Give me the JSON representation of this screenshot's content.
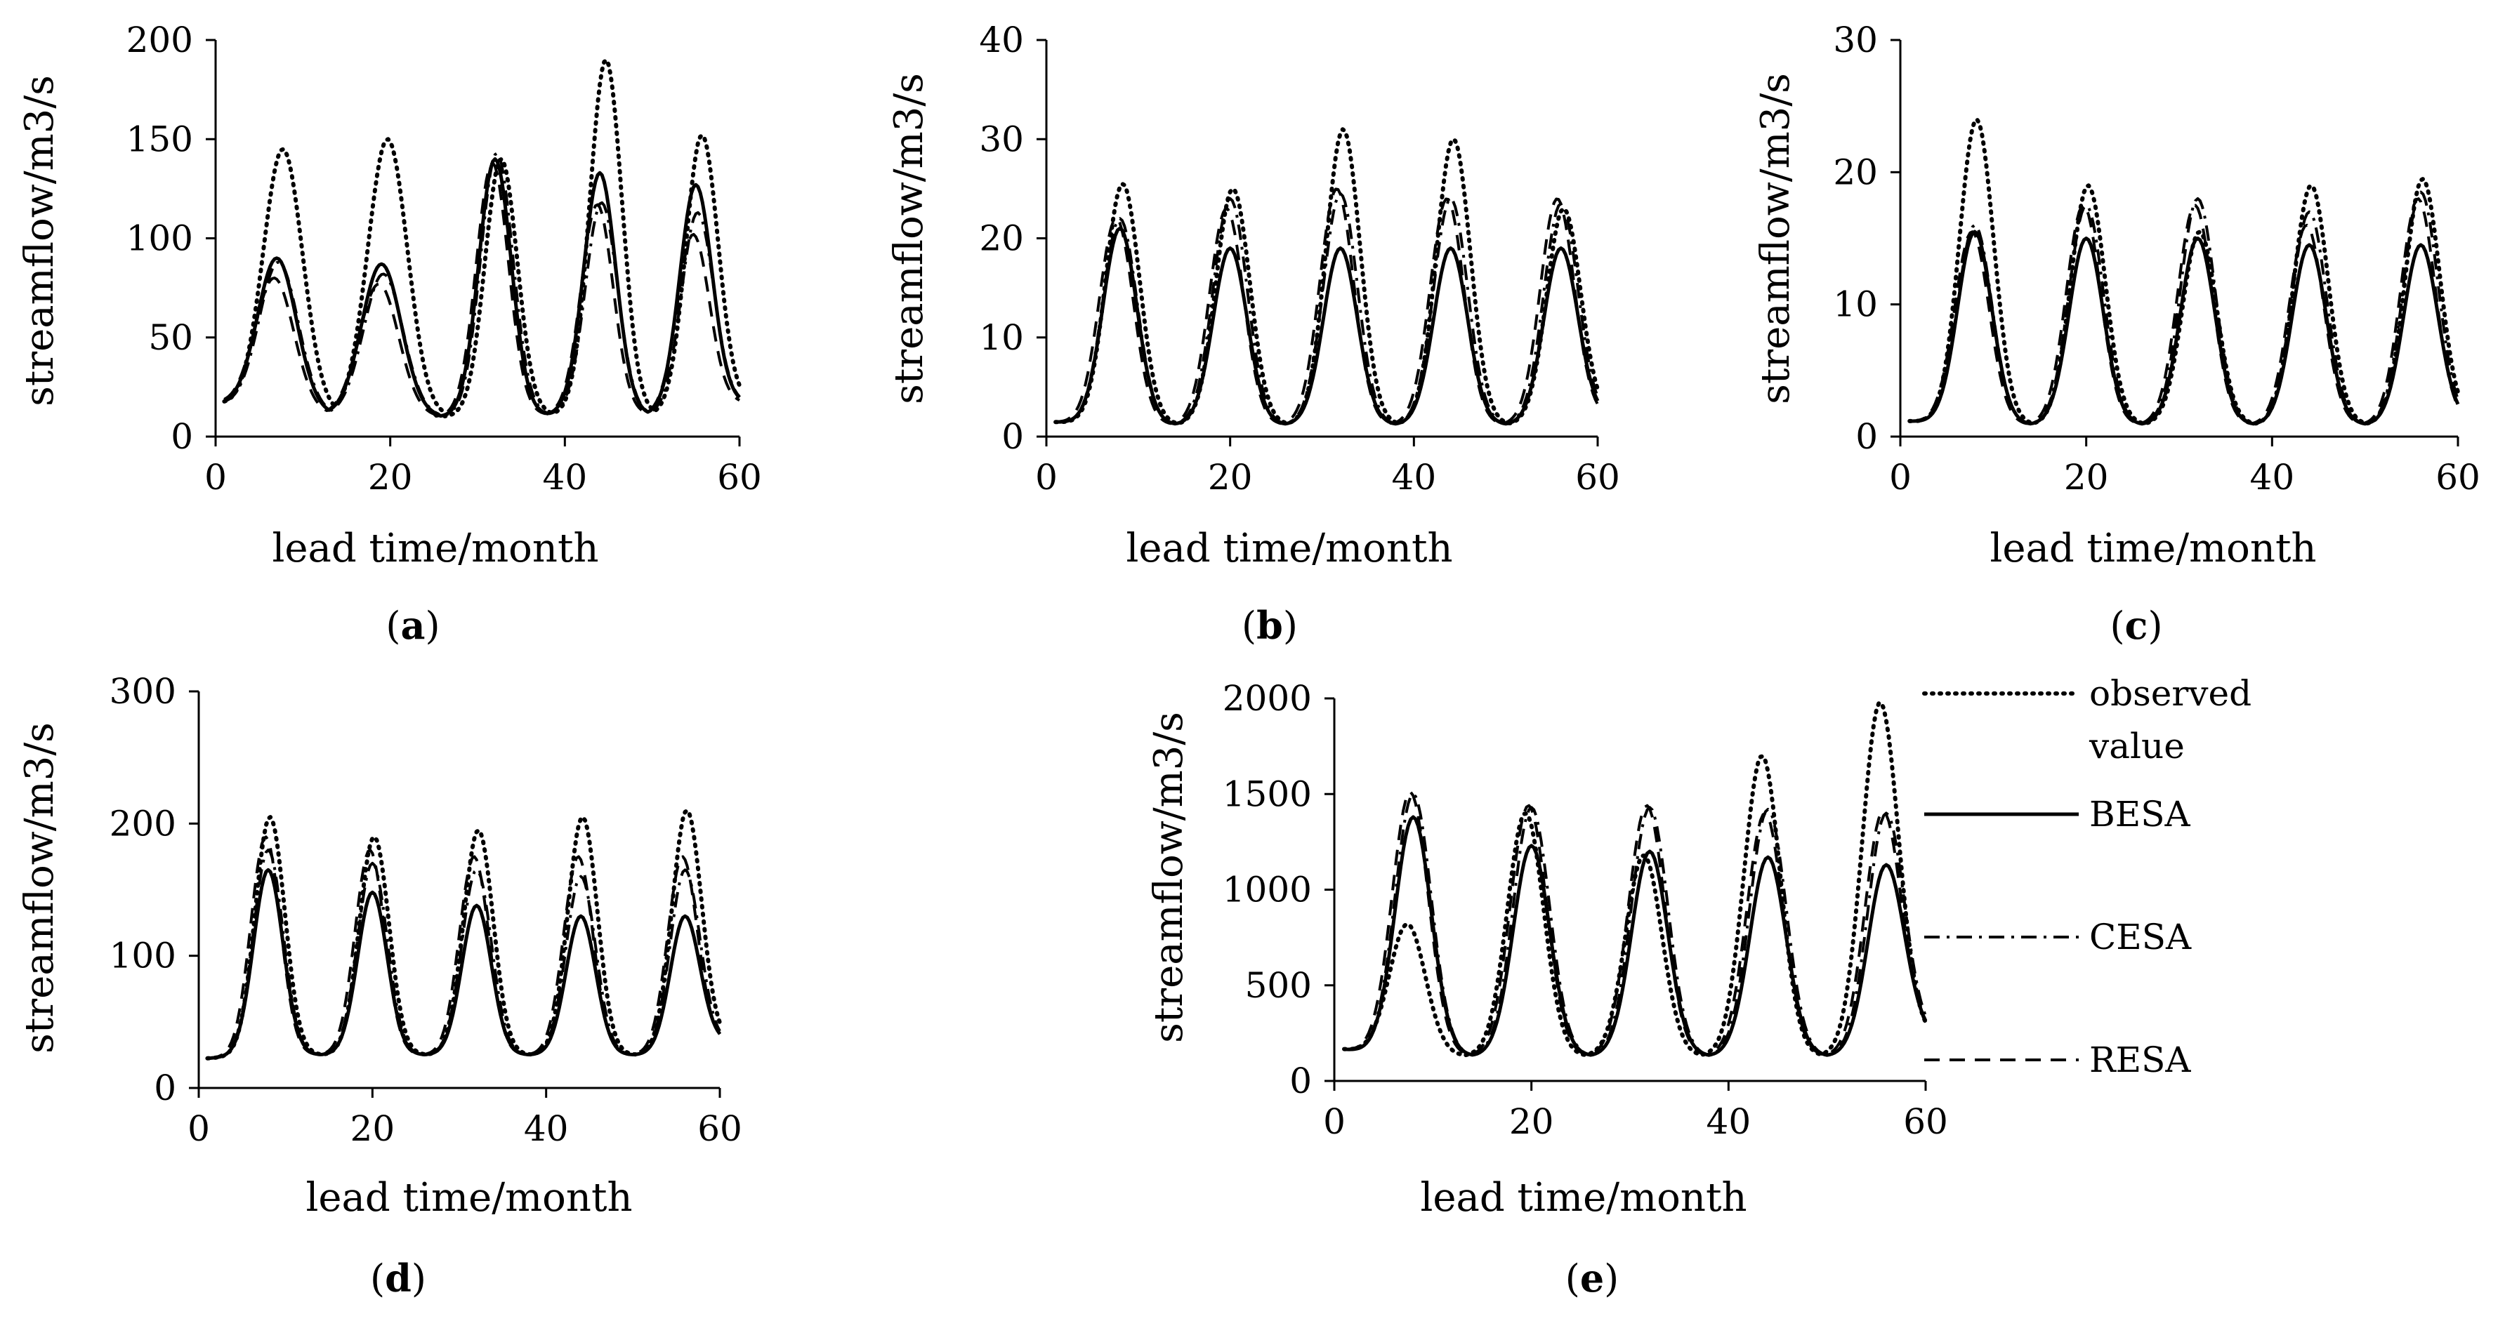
{
  "figure": {
    "line_styles": {
      "observed value": "dotted",
      "BESA": "solid",
      "CESA": "dash-dot",
      "RESA": "dashed"
    },
    "legend": [
      "observed value",
      "BESA",
      "CESA",
      "RESA"
    ],
    "legend_display": {
      "line1": "observed",
      "line2": "value",
      "besa": "BESA",
      "cesa": "CESA",
      "resa": "RESA"
    },
    "line_color": "#000000"
  },
  "chart_data": [
    {
      "panel": "(a)",
      "panel_letter": "a",
      "type": "line",
      "xlabel": "lead time/month",
      "ylabel": "streamflow/m3/s",
      "xlim": [
        0,
        60
      ],
      "ylim": [
        0,
        200
      ],
      "xticks": [
        0,
        20,
        40,
        60
      ],
      "yticks": [
        0,
        50,
        100,
        150,
        200
      ],
      "gen": {
        "peak_months": [
          7,
          19,
          32,
          44,
          55
        ],
        "widths": [
          3.2,
          3.2,
          2.6,
          2.6,
          2.6
        ],
        "baseline": [
          17,
          11,
          10,
          11,
          11,
          17
        ],
        "peaks": {
          "observed value": [
            145,
            150,
            140,
            190,
            152
          ],
          "BESA": [
            90,
            87,
            140,
            133,
            127
          ],
          "CESA": [
            88,
            82,
            143,
            118,
            113
          ],
          "RESA": [
            80,
            77,
            138,
            117,
            102
          ]
        },
        "shift": {
          "observed value": 0.7,
          "BESA": 0,
          "CESA": 0.2,
          "RESA": -0.3
        }
      }
    },
    {
      "panel": "(b)",
      "panel_letter": "b",
      "type": "line",
      "xlabel": "lead time/month",
      "ylabel": "streamflow/m3/s",
      "xlim": [
        0,
        60
      ],
      "ylim": [
        0,
        40
      ],
      "xticks": [
        0,
        20,
        40,
        60
      ],
      "yticks": [
        0,
        10,
        20,
        30,
        40
      ],
      "gen": {
        "peak_months": [
          8,
          20,
          32,
          44,
          56
        ],
        "widths": [
          2.6,
          2.6,
          2.6,
          2.6,
          2.6
        ],
        "baseline": [
          1.5,
          1.2,
          1.2,
          1.2,
          1.2,
          2
        ],
        "peaks": {
          "observed value": [
            25.5,
            25,
            31,
            30,
            23
          ],
          "BESA": [
            21,
            19,
            19,
            19,
            19
          ],
          "CESA": [
            22,
            24,
            24.5,
            24,
            23.5
          ],
          "RESA": [
            22,
            23,
            25,
            24,
            24
          ]
        },
        "shift": {
          "observed value": 0.3,
          "BESA": 0,
          "CESA": 0,
          "RESA": -0.4
        }
      }
    },
    {
      "panel": "(c)",
      "panel_letter": "c",
      "type": "line",
      "xlabel": "lead time/month",
      "ylabel": "streamflow/m3/s",
      "xlim": [
        0,
        60
      ],
      "ylim": [
        0,
        30
      ],
      "xticks": [
        0,
        20,
        40,
        60
      ],
      "yticks": [
        0,
        10,
        20,
        30
      ],
      "gen": {
        "peak_months": [
          8,
          20,
          32,
          44,
          56
        ],
        "widths": [
          2.6,
          2.6,
          2.6,
          2.6,
          2.6
        ],
        "baseline": [
          1.2,
          0.9,
          0.9,
          0.9,
          0.9,
          1.2
        ],
        "peaks": {
          "observed value": [
            24,
            19,
            15.5,
            19,
            19.5
          ],
          "BESA": [
            15.5,
            15,
            15,
            14.5,
            14.5
          ],
          "CESA": [
            16,
            17.5,
            18,
            17,
            18.5
          ],
          "RESA": [
            15.5,
            17.5,
            17.5,
            16,
            18
          ]
        },
        "shift": {
          "observed value": 0.2,
          "BESA": 0,
          "CESA": 0,
          "RESA": -0.3
        }
      }
    },
    {
      "panel": "(d)",
      "panel_letter": "d",
      "type": "line",
      "xlabel": "lead time/month",
      "ylabel": "streamflow/m3/s",
      "xlim": [
        0,
        60
      ],
      "ylim": [
        0,
        300
      ],
      "xticks": [
        0,
        20,
        40,
        60
      ],
      "yticks": [
        0,
        100,
        200,
        300
      ],
      "gen": {
        "peak_months": [
          8,
          20,
          32,
          44,
          56
        ],
        "widths": [
          2.4,
          2.4,
          2.4,
          2.4,
          2.4
        ],
        "baseline": [
          22,
          25,
          25,
          25,
          25,
          35
        ],
        "peaks": {
          "observed value": [
            205,
            190,
            195,
            205,
            210
          ],
          "BESA": [
            165,
            148,
            138,
            130,
            130
          ],
          "CESA": [
            180,
            170,
            165,
            160,
            165
          ],
          "RESA": [
            190,
            180,
            175,
            175,
            175
          ]
        },
        "shift": {
          "observed value": 0.2,
          "BESA": 0,
          "CESA": 0,
          "RESA": -0.3
        }
      }
    },
    {
      "panel": "(e)",
      "panel_letter": "e",
      "type": "line",
      "xlabel": "lead time/month",
      "ylabel": "streamflow/m3/s",
      "xlim": [
        0,
        60
      ],
      "ylim": [
        0,
        2000
      ],
      "xticks": [
        0,
        20,
        40,
        60
      ],
      "yticks": [
        0,
        500,
        1000,
        1500,
        2000
      ],
      "gen": {
        "peak_months": [
          8,
          20,
          32,
          44,
          56
        ],
        "widths": [
          2.6,
          2.6,
          2.6,
          2.6,
          2.6
        ],
        "baseline": [
          170,
          130,
          130,
          130,
          130,
          230
        ],
        "peaks": {
          "observed value": [
            820,
            1400,
            1180,
            1700,
            1980
          ],
          "BESA": [
            1380,
            1230,
            1200,
            1170,
            1130
          ],
          "CESA": [
            1500,
            1430,
            1430,
            1420,
            1400
          ],
          "RESA": [
            1510,
            1440,
            1440,
            1400,
            1410
          ]
        },
        "shift": {
          "observed value": -0.6,
          "BESA": 0,
          "CESA": 0,
          "RESA": -0.3
        }
      }
    }
  ]
}
